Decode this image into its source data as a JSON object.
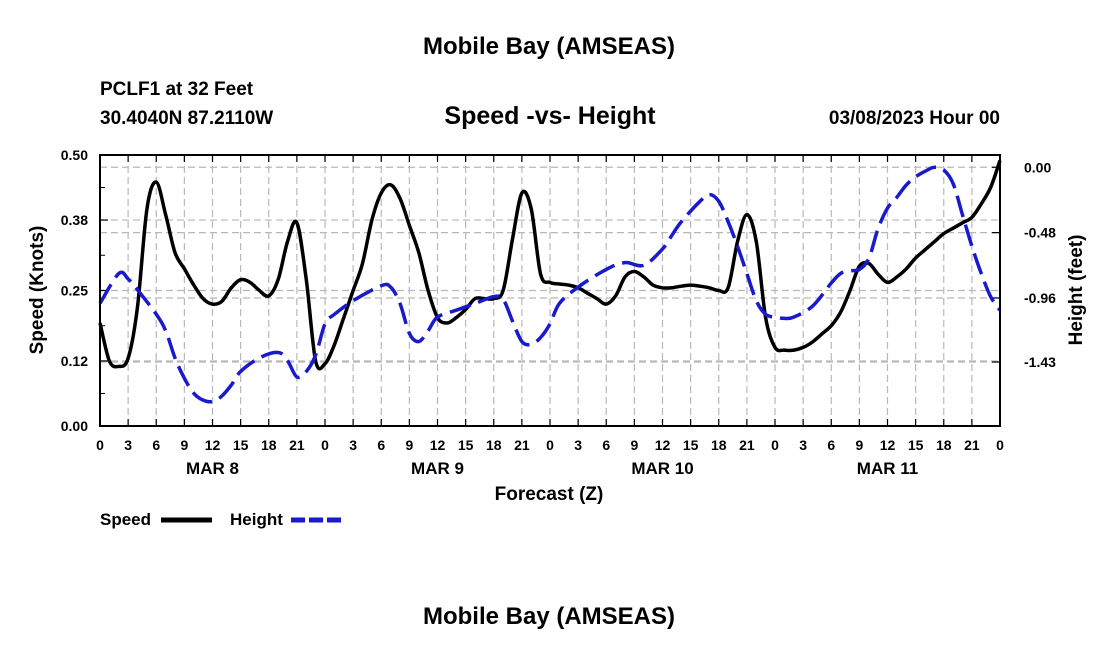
{
  "page": {
    "title": "Mobile Bay (AMSEAS)",
    "bottom_title": "Mobile Bay (AMSEAS)"
  },
  "header": {
    "station_line": "PCLF1 at 32 Feet",
    "coords_line": "30.4040N  87.2110W",
    "date_line": "03/08/2023 Hour 00"
  },
  "chart_data": {
    "type": "line",
    "title": "Speed -vs- Height",
    "xlabel": "Forecast (Z)",
    "ylabel": "Speed (Knots)",
    "y2label": "Height (feet)",
    "x_ticks": [
      "0",
      "3",
      "6",
      "9",
      "12",
      "15",
      "18",
      "21",
      "0",
      "3",
      "6",
      "9",
      "12",
      "15",
      "18",
      "21",
      "0",
      "3",
      "6",
      "9",
      "12",
      "15",
      "18",
      "21",
      "0",
      "3",
      "6",
      "9",
      "12",
      "15",
      "18",
      "21",
      "0"
    ],
    "x_tick_hours": [
      0,
      3,
      6,
      9,
      12,
      15,
      18,
      21,
      24,
      27,
      30,
      33,
      36,
      39,
      42,
      45,
      48,
      51,
      54,
      57,
      60,
      63,
      66,
      69,
      72,
      75,
      78,
      81,
      84,
      87,
      90,
      93,
      96
    ],
    "day_labels": [
      {
        "label": "MAR 8",
        "hour": 12
      },
      {
        "label": "MAR 9",
        "hour": 36
      },
      {
        "label": "MAR 10",
        "hour": 60
      },
      {
        "label": "MAR 11",
        "hour": 84
      }
    ],
    "xlim": [
      0,
      96
    ],
    "ylim": [
      0,
      0.5
    ],
    "y_ticks": [
      0.0,
      0.12,
      0.25,
      0.38,
      0.5
    ],
    "y_tick_labels": [
      "0.00",
      "0.12",
      "0.25",
      "0.38",
      "0.50"
    ],
    "y2lim": [
      -1.9,
      0.09
    ],
    "y2_ticks": [
      0.0,
      -0.48,
      -0.96,
      -1.43
    ],
    "y2_tick_labels": [
      "0.00",
      "-0.48",
      "-0.96",
      "-1.43"
    ],
    "grid": true,
    "series": [
      {
        "name": "Speed",
        "axis": "left",
        "color": "#000000",
        "dash": "solid",
        "x": [
          0,
          1,
          2,
          3,
          4,
          5,
          6,
          7,
          8,
          9,
          10,
          11,
          12,
          13,
          14,
          15,
          16,
          17,
          18,
          19,
          20,
          21,
          22,
          23,
          24,
          25,
          26,
          27,
          28,
          29,
          30,
          31,
          32,
          33,
          34,
          35,
          36,
          37,
          38,
          39,
          40,
          41,
          42,
          43,
          44,
          45,
          46,
          47,
          48,
          49,
          50,
          51,
          52,
          53,
          54,
          55,
          56,
          57,
          58,
          59,
          60,
          61,
          62,
          63,
          64,
          65,
          66,
          67,
          68,
          69,
          70,
          71,
          72,
          73,
          74,
          75,
          76,
          77,
          78,
          79,
          80,
          81,
          82,
          83,
          84,
          85,
          86,
          87,
          88,
          89,
          90,
          91,
          92,
          93,
          94,
          95,
          96
        ],
        "values": [
          0.19,
          0.12,
          0.11,
          0.125,
          0.22,
          0.4,
          0.45,
          0.39,
          0.32,
          0.29,
          0.26,
          0.235,
          0.225,
          0.23,
          0.255,
          0.27,
          0.265,
          0.25,
          0.24,
          0.27,
          0.34,
          0.375,
          0.27,
          0.12,
          0.115,
          0.15,
          0.2,
          0.25,
          0.3,
          0.38,
          0.43,
          0.445,
          0.42,
          0.37,
          0.32,
          0.25,
          0.2,
          0.19,
          0.2,
          0.215,
          0.235,
          0.235,
          0.235,
          0.25,
          0.345,
          0.43,
          0.4,
          0.28,
          0.265,
          0.262,
          0.26,
          0.255,
          0.245,
          0.235,
          0.225,
          0.24,
          0.275,
          0.285,
          0.275,
          0.26,
          0.255,
          0.255,
          0.258,
          0.26,
          0.258,
          0.255,
          0.25,
          0.255,
          0.34,
          0.39,
          0.34,
          0.2,
          0.145,
          0.14,
          0.14,
          0.145,
          0.155,
          0.17,
          0.185,
          0.21,
          0.25,
          0.295,
          0.3,
          0.28,
          0.265,
          0.275,
          0.29,
          0.31,
          0.325,
          0.34,
          0.355,
          0.365,
          0.375,
          0.385,
          0.41,
          0.44,
          0.49
        ]
      },
      {
        "name": "Height",
        "axis": "right",
        "color": "#1a1acc",
        "dash": "dashed",
        "x": [
          0,
          2,
          3,
          4,
          6,
          7,
          8,
          9,
          10,
          11,
          12,
          13,
          14,
          15,
          17,
          19,
          20,
          21,
          22,
          23,
          24,
          25,
          27,
          30,
          31,
          32,
          33,
          34,
          35,
          36,
          38,
          40,
          42,
          43,
          44,
          45,
          46,
          47,
          48,
          49,
          51,
          54,
          56,
          58,
          60,
          61,
          62,
          64,
          65,
          66,
          67,
          68,
          69,
          70,
          71,
          72,
          73,
          74,
          76,
          78,
          79,
          80,
          81,
          82,
          83,
          84,
          85,
          86,
          87,
          88,
          89,
          90,
          91,
          92,
          93,
          94,
          95,
          96
        ],
        "values": [
          -1.0,
          -0.78,
          -0.82,
          -0.9,
          -1.08,
          -1.2,
          -1.4,
          -1.55,
          -1.66,
          -1.71,
          -1.72,
          -1.68,
          -1.6,
          -1.5,
          -1.4,
          -1.36,
          -1.42,
          -1.54,
          -1.5,
          -1.38,
          -1.15,
          -1.08,
          -0.98,
          -0.87,
          -0.88,
          -1.0,
          -1.22,
          -1.28,
          -1.2,
          -1.1,
          -1.05,
          -1.0,
          -0.95,
          -0.97,
          -1.13,
          -1.28,
          -1.3,
          -1.25,
          -1.15,
          -1.0,
          -0.88,
          -0.75,
          -0.7,
          -0.72,
          -0.6,
          -0.5,
          -0.4,
          -0.25,
          -0.2,
          -0.25,
          -0.4,
          -0.58,
          -0.78,
          -0.98,
          -1.08,
          -1.1,
          -1.11,
          -1.1,
          -1.02,
          -0.85,
          -0.78,
          -0.76,
          -0.75,
          -0.67,
          -0.45,
          -0.3,
          -0.22,
          -0.13,
          -0.07,
          -0.03,
          0.0,
          -0.02,
          -0.12,
          -0.35,
          -0.58,
          -0.78,
          -0.95,
          -1.05
        ]
      }
    ],
    "legend": [
      {
        "label": "Speed",
        "color": "#000000",
        "dash": "solid"
      },
      {
        "label": "Height",
        "color": "#1a1acc",
        "dash": "dashed"
      }
    ],
    "legend_position": "bottom-left"
  }
}
